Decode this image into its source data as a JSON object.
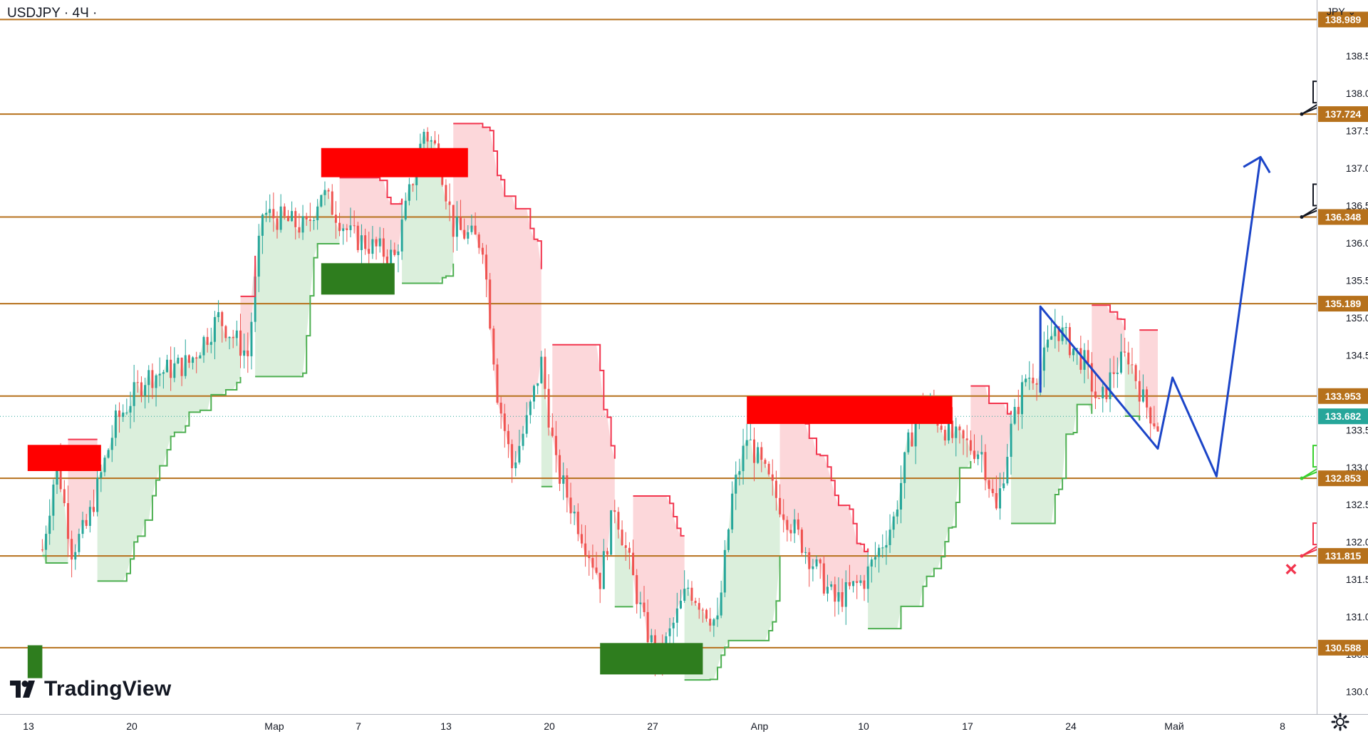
{
  "header": {
    "symbol": "USDJPY · 4Ч ·"
  },
  "currency_menu": {
    "label": "JPY"
  },
  "brand": {
    "name": "TradingView"
  },
  "colors": {
    "level_line": "#b6711c",
    "bear_zone": "#ff0000",
    "bull_zone": "#2e7d1e",
    "stop_red": "#f2344d",
    "stop_green": "#4caf50",
    "forecast": "#1c45c8",
    "candle_up": "#26a69a",
    "candle_down": "#ef5350"
  },
  "chart_data": {
    "type": "candlestick",
    "symbol": "USDJPY",
    "timeframe": "4Ч",
    "currency": "JPY",
    "ylim": [
      129.7,
      139.25
    ],
    "price_ticks": [
      "130.000",
      "130.500",
      "131.000",
      "131.500",
      "132.000",
      "132.500",
      "133.000",
      "133.500",
      "134.000",
      "134.500",
      "135.000",
      "135.500",
      "136.000",
      "136.500",
      "137.000",
      "137.500",
      "138.000",
      "138.500"
    ],
    "x_ticks": [
      "13",
      "20",
      "Мар",
      "7",
      "13",
      "20",
      "27",
      "Апр",
      "10",
      "17",
      "24",
      "Май",
      "8"
    ],
    "levels": [
      {
        "price": 138.989,
        "label": "138.989"
      },
      {
        "price": 137.724,
        "label": "137.724"
      },
      {
        "price": 136.348,
        "label": "136.348"
      },
      {
        "price": 135.189,
        "label": "135.189"
      },
      {
        "price": 133.953,
        "label": "133.953"
      },
      {
        "price": 132.853,
        "label": "132.853"
      },
      {
        "price": 131.815,
        "label": "131.815"
      },
      {
        "price": 130.588,
        "label": "130.588"
      }
    ],
    "current_price": {
      "price": 133.682,
      "label": "133.682"
    },
    "targets": [
      {
        "label": "137.724",
        "price": 137.724,
        "style": "black"
      },
      {
        "label": "136.348",
        "price": 136.348,
        "style": "black"
      },
      {
        "label": "132.853",
        "price": 132.853,
        "style": "green"
      },
      {
        "label": "131.815",
        "price": 131.815,
        "style": "red"
      }
    ],
    "stop_marker": {
      "price": 131.65,
      "symbol": "×"
    },
    "bear_zones": [
      {
        "from": "Фев 9",
        "to": "Фев 14",
        "low": 132.95,
        "high": 133.3
      },
      {
        "from": "Мар 1",
        "to": "Мар 11",
        "low": 136.88,
        "high": 137.27
      },
      {
        "from": "Мар 30",
        "to": "Апр 13",
        "low": 133.58,
        "high": 133.95
      }
    ],
    "bull_zones": [
      {
        "from": "Фев 9",
        "to": "Фев 10",
        "low": 130.18,
        "high": 130.62
      },
      {
        "from": "Мар 1",
        "to": "Мар 6",
        "low": 135.31,
        "high": 135.73
      },
      {
        "from": "Мар 20",
        "to": "Мар 27",
        "low": 130.23,
        "high": 130.65
      }
    ],
    "forecast_path": [
      {
        "date": "Апр 19",
        "price": 134.0
      },
      {
        "date": "Апр 19",
        "price": 135.15
      },
      {
        "date": "Апр 27",
        "price": 133.25
      },
      {
        "date": "Апр 28",
        "price": 134.2
      },
      {
        "date": "Май 1",
        "price": 132.88
      },
      {
        "date": "Май 4",
        "price": 137.15
      }
    ],
    "price_path": [
      {
        "date": "Фев 10",
        "price": 130.8
      },
      {
        "date": "Фев 10",
        "price": 131.9
      },
      {
        "date": "Фев 11",
        "price": 133.1
      },
      {
        "date": "Фев 12",
        "price": 131.9
      },
      {
        "date": "Фев 13",
        "price": 132.2
      },
      {
        "date": "Фев 15",
        "price": 133.6
      },
      {
        "date": "Фев 17",
        "price": 134.2
      },
      {
        "date": "Фев 20",
        "price": 134.4
      },
      {
        "date": "Фев 22",
        "price": 135.0
      },
      {
        "date": "Фев 24",
        "price": 134.5
      },
      {
        "date": "Фев 25",
        "price": 136.4
      },
      {
        "date": "Фев 28",
        "price": 136.2
      },
      {
        "date": "Мар 1",
        "price": 136.7
      },
      {
        "date": "Мар 3",
        "price": 136.1
      },
      {
        "date": "Мар 6",
        "price": 135.8
      },
      {
        "date": "Мар 8",
        "price": 137.5
      },
      {
        "date": "Мар 9",
        "price": 137.2
      },
      {
        "date": "Мар 10",
        "price": 136.2
      },
      {
        "date": "Мар 12",
        "price": 136.0
      },
      {
        "date": "Мар 13",
        "price": 134.0
      },
      {
        "date": "Мар 14",
        "price": 133.0
      },
      {
        "date": "Мар 15",
        "price": 133.6
      },
      {
        "date": "Мар 16",
        "price": 134.4
      },
      {
        "date": "Мар 17",
        "price": 133.0
      },
      {
        "date": "Мар 19",
        "price": 132.0
      },
      {
        "date": "Мар 20",
        "price": 131.5
      },
      {
        "date": "Мар 21",
        "price": 132.5
      },
      {
        "date": "Мар 23",
        "price": 130.9
      },
      {
        "date": "Мар 24",
        "price": 130.4
      },
      {
        "date": "Мар 26",
        "price": 131.4
      },
      {
        "date": "Мар 28",
        "price": 130.9
      },
      {
        "date": "Мар 29",
        "price": 132.6
      },
      {
        "date": "Мар 30",
        "price": 133.4
      },
      {
        "date": "Мар 31",
        "price": 133.0
      },
      {
        "date": "Апр 1",
        "price": 132.6
      },
      {
        "date": "Апр 3",
        "price": 131.9
      },
      {
        "date": "Апр 5",
        "price": 131.2
      },
      {
        "date": "Апр 7",
        "price": 131.5
      },
      {
        "date": "Апр 9",
        "price": 132.3
      },
      {
        "date": "Апр 10",
        "price": 133.3
      },
      {
        "date": "Апр 11",
        "price": 133.9
      },
      {
        "date": "Апр 13",
        "price": 133.4
      },
      {
        "date": "Апр 15",
        "price": 133.2
      },
      {
        "date": "Апр 16",
        "price": 132.4
      },
      {
        "date": "Апр 17",
        "price": 133.5
      },
      {
        "date": "Апр 18",
        "price": 134.2
      },
      {
        "date": "Апр 19",
        "price": 134.3
      },
      {
        "date": "Апр 20",
        "price": 134.9
      },
      {
        "date": "Апр 22",
        "price": 134.4
      },
      {
        "date": "Апр 23",
        "price": 133.8
      },
      {
        "date": "Апр 24",
        "price": 134.3
      },
      {
        "date": "Апр 25",
        "price": 134.5
      },
      {
        "date": "Апр 26",
        "price": 133.9
      },
      {
        "date": "Апр 27",
        "price": 133.55
      }
    ]
  }
}
